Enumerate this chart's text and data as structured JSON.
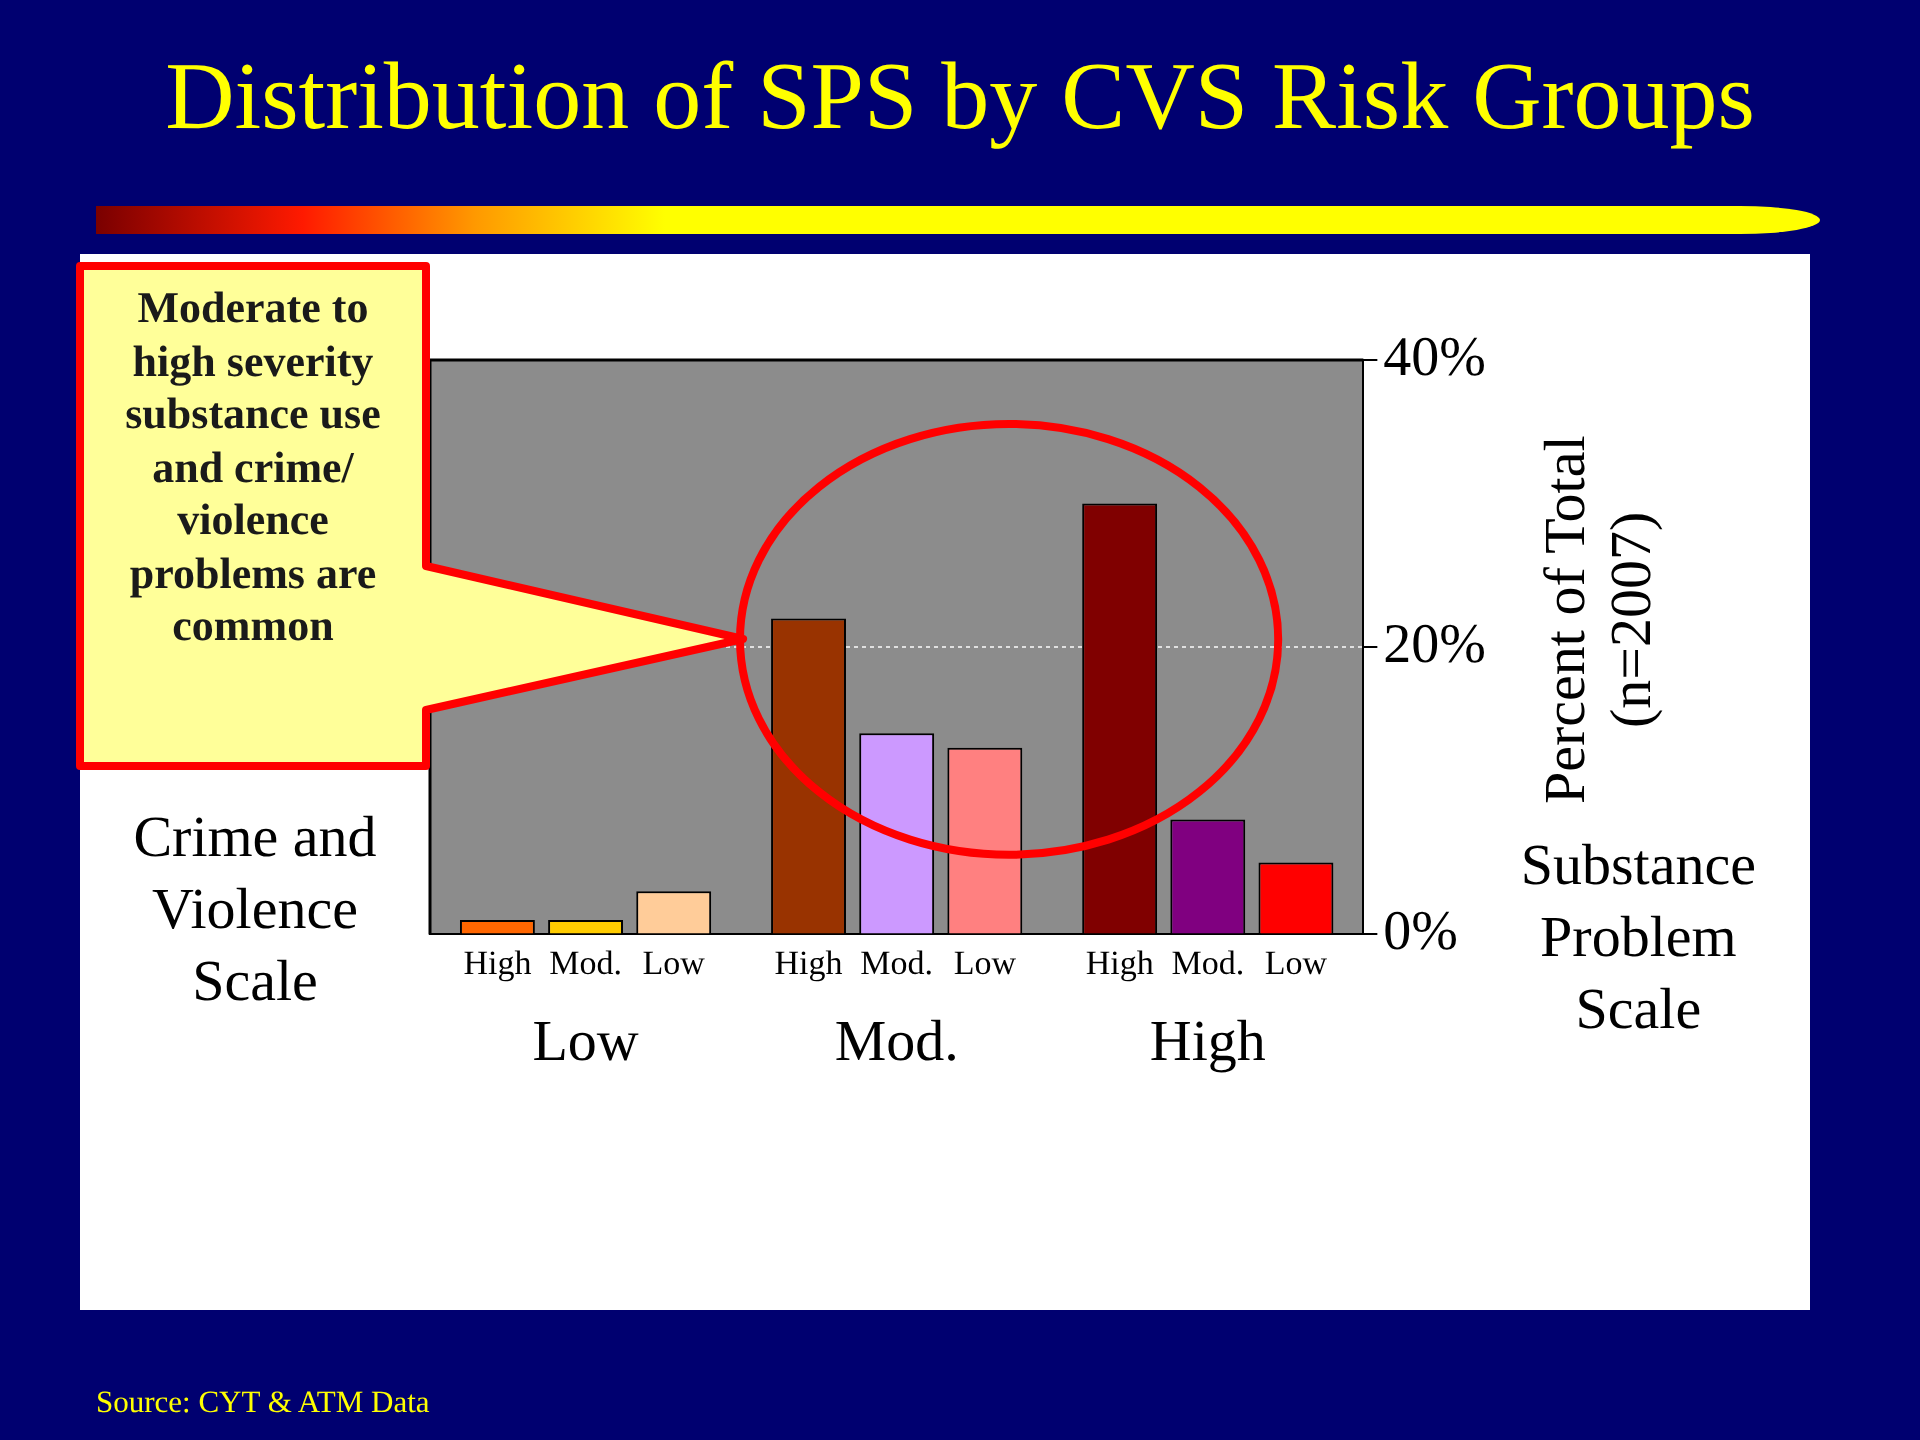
{
  "chart_data": {
    "type": "bar",
    "title": "Distribution of SPS by CVS Risk Groups",
    "xlabel": "Substance Problem Scale",
    "ylabel": "Percent of Total (n=2007)",
    "legend_title": "Crime and Violence Scale",
    "categories": [
      "Low",
      "Mod.",
      "High"
    ],
    "series": [
      {
        "name": "High",
        "colors": [
          "#ff6600",
          "#993300",
          "#800000"
        ],
        "values": [
          1,
          22,
          30
        ]
      },
      {
        "name": "Mod.",
        "colors": [
          "#ffcc00",
          "#cc99ff",
          "#800080"
        ],
        "values": [
          1,
          14,
          8
        ]
      },
      {
        "name": "Low",
        "colors": [
          "#ffcc99",
          "#ff8080",
          "#ff0000"
        ],
        "values": [
          3,
          13,
          5
        ]
      }
    ],
    "ylim": [
      0,
      40
    ],
    "yticks": [
      {
        "value": 0,
        "label": "0%"
      },
      {
        "value": 20,
        "label": "20%"
      },
      {
        "value": 40,
        "label": "40%"
      }
    ],
    "grid": "y",
    "annotations": [
      "Moderate to high severity substance use and crime/ violence problems are common",
      "Source: CYT & ATM Data"
    ]
  }
}
